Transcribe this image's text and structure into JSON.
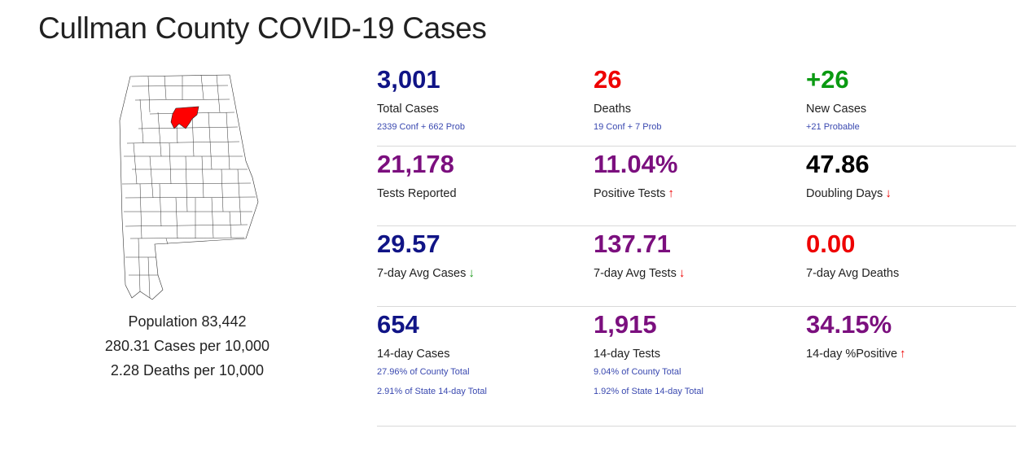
{
  "page_title": "Cullman County COVID-19 Cases",
  "population": {
    "population_text": "Population 83,442",
    "cases_per_10k": "280.31 Cases per 10,000",
    "deaths_per_10k": "2.28 Deaths per 10,000"
  },
  "colors": {
    "navy": "#101486",
    "red": "#ee0000",
    "green": "#0a9a12",
    "purple": "#7b0f7e",
    "black": "#000000",
    "highlight": "#ff0000"
  },
  "stats": [
    [
      {
        "value": "3,001",
        "label": "Total Cases",
        "subs": [
          "2339 Conf + 662 Prob"
        ],
        "color": "#101486",
        "arrow": ""
      },
      {
        "value": "26",
        "label": "Deaths",
        "subs": [
          "19 Conf + 7 Prob"
        ],
        "color": "#ee0000",
        "arrow": ""
      },
      {
        "value": "+26",
        "label": "New Cases",
        "subs": [
          "+21 Probable"
        ],
        "color": "#0a9a12",
        "arrow": ""
      }
    ],
    [
      {
        "value": "21,178",
        "label": "Tests Reported",
        "subs": [],
        "color": "#7b0f7e",
        "arrow": ""
      },
      {
        "value": "11.04%",
        "label": "Positive Tests",
        "subs": [],
        "color": "#7b0f7e",
        "arrow": "up-red"
      },
      {
        "value": "47.86",
        "label": "Doubling Days",
        "subs": [],
        "color": "#000000",
        "arrow": "down-red"
      }
    ],
    [
      {
        "value": "29.57",
        "label": "7-day Avg Cases",
        "subs": [],
        "color": "#101486",
        "arrow": "down-green"
      },
      {
        "value": "137.71",
        "label": "7-day Avg Tests",
        "subs": [],
        "color": "#7b0f7e",
        "arrow": "down-red"
      },
      {
        "value": "0.00",
        "label": "7-day Avg Deaths",
        "subs": [],
        "color": "#ee0000",
        "arrow": ""
      }
    ],
    [
      {
        "value": "654",
        "label": "14-day Cases",
        "subs": [
          "27.96% of County Total",
          "2.91% of State 14-day Total"
        ],
        "color": "#101486",
        "arrow": ""
      },
      {
        "value": "1,915",
        "label": "14-day Tests",
        "subs": [
          "9.04% of County Total",
          "1.92% of State 14-day Total"
        ],
        "color": "#7b0f7e",
        "arrow": ""
      },
      {
        "value": "34.15%",
        "label": "14-day %Positive",
        "subs": [],
        "color": "#7b0f7e",
        "arrow": "up-red"
      }
    ]
  ]
}
